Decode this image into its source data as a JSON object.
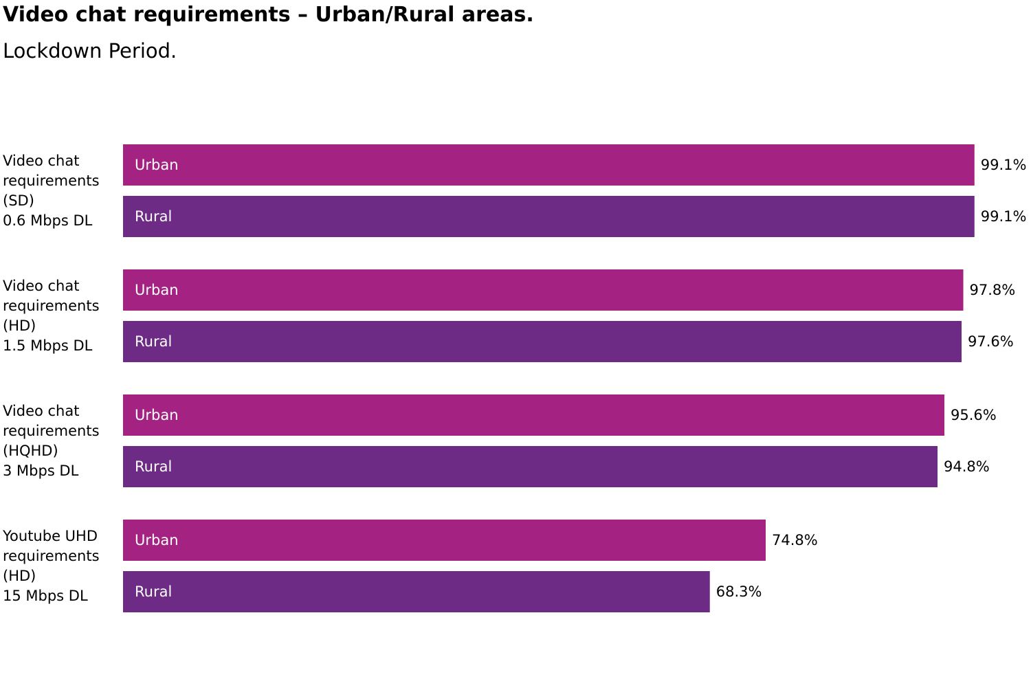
{
  "chart_data": {
    "type": "bar",
    "orientation": "horizontal",
    "title": "Video chat requirements – Urban/Rural areas.",
    "subtitle": "Lockdown Period.",
    "categories": [
      [
        "Video chat",
        "requirements",
        "(SD)",
        "0.6 Mbps DL"
      ],
      [
        "Video chat",
        "requirements",
        "(HD)",
        "1.5 Mbps DL"
      ],
      [
        "Video chat",
        "requirements",
        "(HQHD)",
        "3 Mbps DL"
      ],
      [
        "Youtube UHD",
        "requirements",
        "(HD)",
        "15 Mbps DL"
      ]
    ],
    "series": [
      {
        "name": "Urban",
        "color": "#a32282",
        "values": [
          99.1,
          97.8,
          95.6,
          74.8
        ],
        "value_labels": [
          "99.1%",
          "97.8%",
          "95.6%",
          "74.8%"
        ]
      },
      {
        "name": "Rural",
        "color": "#6e2b85",
        "values": [
          99.1,
          97.6,
          94.8,
          68.3
        ],
        "value_labels": [
          "99.1%",
          "97.6%",
          "94.8%",
          "68.3%"
        ]
      }
    ],
    "xlim": [
      0,
      100
    ],
    "grid": false,
    "legend": "none"
  }
}
